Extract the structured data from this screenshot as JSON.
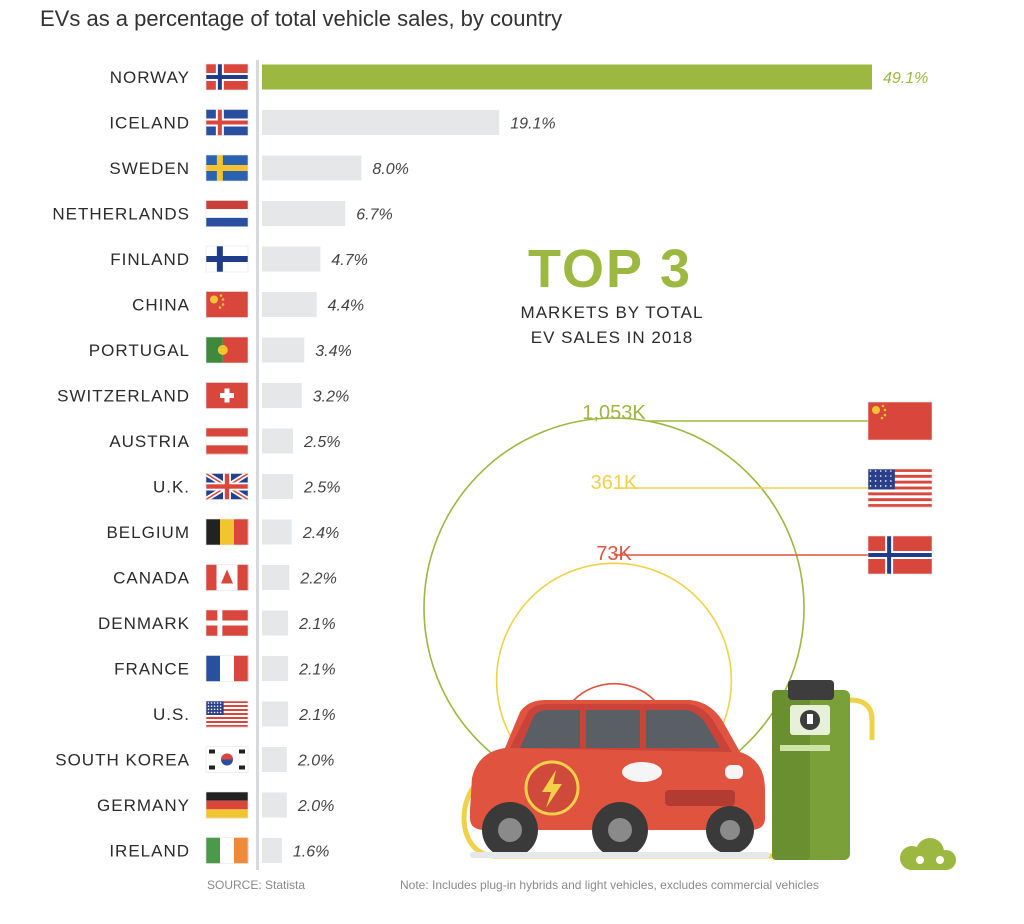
{
  "title": "EVs as a percentage of total vehicle sales, by country",
  "chart_data": [
    {
      "type": "bar",
      "orientation": "horizontal",
      "categories": [
        "NORWAY",
        "ICELAND",
        "SWEDEN",
        "NETHERLANDS",
        "FINLAND",
        "CHINA",
        "PORTUGAL",
        "SWITZERLAND",
        "AUSTRIA",
        "U.K.",
        "BELGIUM",
        "CANADA",
        "DENMARK",
        "FRANCE",
        "U.S.",
        "SOUTH KOREA",
        "GERMANY",
        "IRELAND"
      ],
      "values": [
        49.1,
        19.1,
        8.0,
        6.7,
        4.7,
        4.4,
        3.4,
        3.2,
        2.5,
        2.5,
        2.4,
        2.2,
        2.1,
        2.1,
        2.1,
        2.0,
        2.0,
        1.6
      ],
      "value_labels": [
        "49.1%",
        "19.1%",
        "8.0%",
        "6.7%",
        "4.7%",
        "4.4%",
        "3.4%",
        "3.2%",
        "2.5%",
        "2.5%",
        "2.4%",
        "2.2%",
        "2.1%",
        "2.1%",
        "2.1%",
        "2.0%",
        "2.0%",
        "1.6%"
      ],
      "flags": [
        "norway",
        "iceland",
        "sweden",
        "netherlands",
        "finland",
        "china",
        "portugal",
        "switzerland",
        "austria",
        "uk",
        "belgium",
        "canada",
        "denmark",
        "france",
        "us",
        "south-korea",
        "germany",
        "ireland"
      ],
      "xlim": [
        0,
        49.1
      ],
      "highlight_color": "#9cb840",
      "bar_color": "#e6e7e9"
    },
    {
      "type": "bubble",
      "title": "TOP 3",
      "subtitle": "MARKETS BY TOTAL EV SALES IN 2018",
      "items": [
        {
          "flag": "china",
          "label": "1,053K",
          "value": 1053,
          "color": "#9cb840"
        },
        {
          "flag": "us",
          "label": "361K",
          "value": 361,
          "color": "#efd24a"
        },
        {
          "flag": "norway",
          "label": "73K",
          "value": 73,
          "color": "#e0533f"
        }
      ]
    }
  ],
  "colors": {
    "accent_green": "#9cb840",
    "yellow": "#efd24a",
    "red": "#e0533f",
    "car_body": "#e0533f",
    "charger": "#7aa03a"
  },
  "footer": {
    "source": "SOURCE: Statista",
    "note": "Note: Includes plug-in hybrids and light vehicles, excludes commercial vehicles"
  },
  "icons": [
    "ev-car-illustration",
    "charging-station-illustration",
    "brand-logo-icon"
  ]
}
